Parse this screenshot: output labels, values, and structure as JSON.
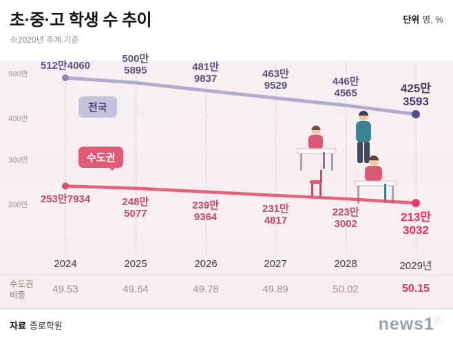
{
  "header": {
    "title": "초·중·고 학생 수 추이",
    "unit_label": "단위",
    "unit_value": "명, %",
    "note": "※2020년 추계 기준"
  },
  "chart_data": {
    "type": "line",
    "title": "초·중·고 학생 수 추이",
    "grid": "vertical-dashed",
    "x_labels": [
      "2024",
      "2025",
      "2026",
      "2027",
      "2028",
      "2029년"
    ],
    "y_tick_labels": [
      "500만",
      "400만",
      "300만",
      "200만"
    ],
    "y_ticks": [
      5000000,
      4000000,
      3000000,
      2000000
    ],
    "ylim": [
      2000000,
      5300000
    ],
    "series": [
      {
        "name": "전국",
        "color": "#aba6cd",
        "start_dot_color": "#8d88b4",
        "end_dot_color": "#56507e",
        "values": [
          5124060,
          5005895,
          4819837,
          4639529,
          4464565,
          4253593
        ],
        "point_labels": [
          [
            "512만4060"
          ],
          [
            "500만",
            "5895"
          ],
          [
            "481만",
            "9837"
          ],
          [
            "463만",
            "9529"
          ],
          [
            "446만",
            "4565"
          ],
          [
            "425만",
            "3593"
          ]
        ]
      },
      {
        "name": "수도권",
        "color": "#e25672",
        "start_dot_color": "#d64e66",
        "end_dot_color": "#ea3a62",
        "values": [
          2537934,
          2485077,
          2399364,
          2314817,
          2233002,
          2133032
        ],
        "point_labels": [
          [
            "253만7934"
          ],
          [
            "248만",
            "5077"
          ],
          [
            "239만",
            "9364"
          ],
          [
            "231만",
            "4817"
          ],
          [
            "223만",
            "3002"
          ],
          [
            "213만",
            "3032"
          ]
        ]
      }
    ],
    "bottom_table": {
      "row_label_lines": [
        "수도권",
        "비중"
      ],
      "values": [
        "49.53",
        "49.64",
        "49.78",
        "49.89",
        "50.02",
        "50.15"
      ]
    }
  },
  "footer": {
    "source_label": "자료",
    "source_value": "종로학원",
    "logo_text": "news1",
    "logo_mark": "ⓒ"
  }
}
